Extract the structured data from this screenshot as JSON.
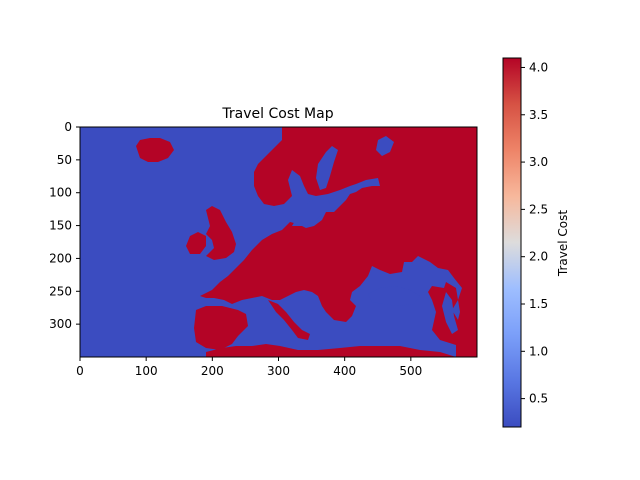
{
  "chart_data": {
    "type": "heatmap",
    "title": "Travel Cost Map",
    "xlabel": "",
    "ylabel": "",
    "xlim": [
      0,
      600
    ],
    "ylim": [
      350,
      0
    ],
    "x_ticks": [
      0,
      100,
      200,
      300,
      400,
      500
    ],
    "y_ticks": [
      0,
      50,
      100,
      150,
      200,
      250,
      300
    ],
    "grid": false,
    "colormap": "coolwarm",
    "values_description_levels": {
      "water": 0.2,
      "land": 4.1
    },
    "colorbar": {
      "label": "Travel Cost",
      "range": [
        0.2,
        4.1
      ],
      "ticks": [
        0.5,
        1.0,
        1.5,
        2.0,
        2.5,
        3.0,
        3.5,
        4.0
      ],
      "tick_labels": [
        "0.5",
        "1.0",
        "1.5",
        "2.0",
        "2.5",
        "3.0",
        "3.5",
        "4.0"
      ]
    },
    "colors": {
      "low": "#3b4cc0",
      "high": "#b40426"
    }
  }
}
